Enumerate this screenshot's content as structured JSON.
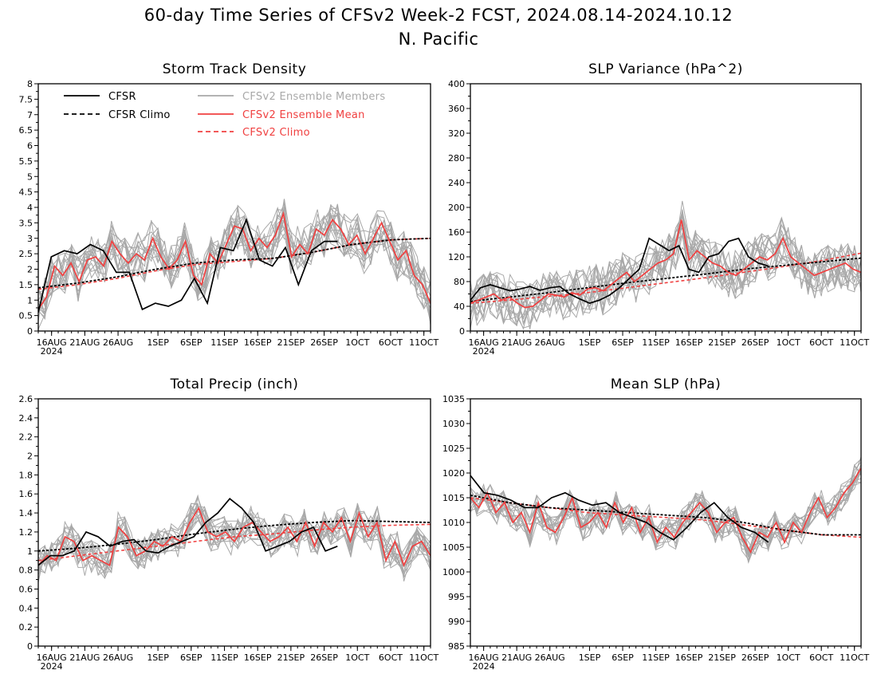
{
  "figure": {
    "title_line1": "60-day Time Series of CFSv2 Week-2 FCST, 2024.08.14-2024.10.12",
    "title_line2": "N. Pacific"
  },
  "legend": {
    "cfsr": "CFSR",
    "cfsr_climo": "CFSR Climo",
    "ens_members": "CFSv2 Ensemble Members",
    "ens_mean": "CFSv2 Ensemble Mean",
    "cfsv2_climo": "CFSv2 Climo"
  },
  "colors": {
    "cfsr": "#000000",
    "cfsr_climo": "#000000",
    "ens_members": "#a8a8a8",
    "ens_mean": "#f04040",
    "cfsv2_climo": "#f04040"
  },
  "x_axis": {
    "tick_labels": [
      "16AUG",
      "21AUG",
      "26AUG",
      "1SEP",
      "6SEP",
      "11SEP",
      "16SEP",
      "21SEP",
      "26SEP",
      "1OCT",
      "6OCT",
      "11OCT"
    ],
    "tick_days": [
      2,
      7,
      12,
      18,
      23,
      28,
      33,
      38,
      43,
      48,
      53,
      58
    ],
    "year_label": "2024",
    "start_date": "2024-08-14",
    "end_date": "2024-10-12",
    "n_days": 60
  },
  "chart_data": [
    {
      "type": "line",
      "title": "Storm Track Density",
      "ylim": [
        0,
        8
      ],
      "yticks": [
        "0",
        "0.5",
        "1",
        "1.5",
        "2",
        "2.5",
        "3",
        "3.5",
        "4",
        "4.5",
        "5",
        "5.5",
        "6",
        "6.5",
        "7",
        "7.5",
        "8"
      ],
      "show_legend": true,
      "series": [
        {
          "name": "CFSR",
          "x": [
            0,
            2,
            4,
            6,
            8,
            10,
            12,
            14,
            16,
            18,
            20,
            22,
            24,
            26,
            28,
            30,
            32,
            34,
            36,
            38,
            40,
            42,
            43,
            45,
            46,
            48,
            50,
            52,
            54,
            56,
            58,
            60
          ],
          "values": [
            0.6,
            2.4,
            2.6,
            2.5,
            2.8,
            2.6,
            1.9,
            1.9,
            0.7,
            0.9,
            0.8,
            1.0,
            1.7,
            0.9,
            2.7,
            2.6,
            3.6,
            2.3,
            2.1,
            2.7,
            1.5,
            2.6,
            2.9,
            2.9,
            null,
            null,
            null,
            null,
            null,
            null,
            null,
            null
          ]
        },
        {
          "name": "CFSR Climo",
          "values": [
            1.4,
            1.55,
            1.75,
            2.0,
            2.2,
            2.3,
            2.35,
            2.55,
            2.8,
            2.95,
            3.0
          ]
        },
        {
          "name": "CFSv2 Ensemble Mean",
          "values": [
            0.7,
            1.1,
            2.1,
            1.8,
            2.2,
            1.6,
            2.3,
            2.4,
            2.1,
            2.9,
            2.5,
            2.2,
            2.5,
            2.3,
            3.0,
            2.4,
            2.0,
            2.3,
            2.9,
            1.8,
            1.5,
            2.5,
            2.2,
            2.8,
            3.4,
            3.3,
            2.6,
            3.0,
            2.7,
            3.1,
            3.8,
            2.4,
            2.8,
            2.5,
            3.3,
            3.1,
            3.6,
            3.3,
            2.8,
            3.1,
            2.5,
            3.0,
            3.5,
            2.9,
            2.3,
            2.6,
            1.8,
            1.5,
            0.9
          ]
        },
        {
          "name": "CFSv2 Climo",
          "values": [
            1.35,
            1.5,
            1.7,
            1.95,
            2.15,
            2.25,
            2.35,
            2.55,
            2.8,
            2.95,
            3.0
          ]
        }
      ]
    },
    {
      "type": "line",
      "title": "SLP Variance (hPa^2)",
      "ylim": [
        0,
        400
      ],
      "yticks": [
        "0",
        "40",
        "80",
        "120",
        "160",
        "200",
        "240",
        "280",
        "320",
        "360",
        "400"
      ],
      "show_legend": false,
      "series": [
        {
          "name": "CFSR",
          "values": [
            50,
            70,
            75,
            70,
            65,
            68,
            72,
            66,
            70,
            72,
            60,
            52,
            45,
            50,
            58,
            70,
            85,
            100,
            150,
            140,
            130,
            138,
            100,
            95,
            120,
            125,
            145,
            150,
            120,
            110,
            105
          ]
        },
        {
          "name": "CFSR Climo",
          "values": [
            48,
            55,
            62,
            70,
            78,
            85,
            92,
            100,
            106,
            112,
            118
          ]
        },
        {
          "name": "CFSv2 Ensemble Mean",
          "values": [
            45,
            50,
            55,
            60,
            50,
            55,
            45,
            38,
            40,
            50,
            60,
            58,
            55,
            62,
            58,
            68,
            70,
            65,
            75,
            85,
            95,
            80,
            90,
            100,
            110,
            115,
            125,
            180,
            115,
            130,
            120,
            110,
            105,
            95,
            90,
            100,
            110,
            120,
            115,
            125,
            150,
            120,
            110,
            100,
            90,
            95,
            100,
            105,
            110,
            100,
            95
          ]
        },
        {
          "name": "CFSv2 Climo",
          "values": [
            45,
            50,
            56,
            62,
            70,
            78,
            86,
            95,
            104,
            114,
            126
          ]
        }
      ]
    },
    {
      "type": "line",
      "title": "Total Precip (inch)",
      "ylim": [
        0,
        2.6
      ],
      "yticks": [
        "0",
        "0.2",
        "0.4",
        "0.6",
        "0.8",
        "1",
        "1.2",
        "1.4",
        "1.6",
        "1.8",
        "2",
        "2.2",
        "2.4",
        "2.6"
      ],
      "show_legend": false,
      "series": [
        {
          "name": "CFSR",
          "values": [
            0.85,
            0.95,
            0.95,
            1.0,
            1.2,
            1.15,
            1.05,
            1.1,
            1.12,
            1.0,
            0.98,
            1.05,
            1.1,
            1.15,
            1.3,
            1.4,
            1.55,
            1.45,
            1.3,
            1.0,
            1.05,
            1.1,
            1.2,
            1.25,
            1.0,
            1.05
          ]
        },
        {
          "name": "CFSR Climo",
          "values": [
            1.0,
            1.03,
            1.07,
            1.12,
            1.18,
            1.23,
            1.27,
            1.3,
            1.32,
            1.31,
            1.3
          ]
        },
        {
          "name": "CFSv2 Ensemble Mean",
          "values": [
            0.85,
            0.95,
            0.9,
            1.15,
            1.1,
            0.9,
            0.95,
            0.9,
            0.85,
            1.25,
            1.15,
            0.95,
            1.0,
            1.1,
            1.05,
            1.15,
            1.1,
            1.3,
            1.45,
            1.2,
            1.15,
            1.2,
            1.1,
            1.25,
            1.3,
            1.2,
            1.1,
            1.15,
            1.25,
            1.1,
            1.3,
            1.05,
            1.3,
            1.2,
            1.35,
            1.1,
            1.4,
            1.15,
            1.3,
            0.9,
            1.1,
            0.85,
            1.05,
            1.1,
            0.95
          ]
        },
        {
          "name": "CFSv2 Climo",
          "values": [
            0.9,
            0.95,
            1.0,
            1.05,
            1.1,
            1.15,
            1.18,
            1.22,
            1.25,
            1.27,
            1.28
          ]
        }
      ]
    },
    {
      "type": "line",
      "title": "Mean SLP (hPa)",
      "ylim": [
        985,
        1035
      ],
      "yticks": [
        "985",
        "990",
        "995",
        "1000",
        "1005",
        "1010",
        "1015",
        "1020",
        "1025",
        "1030",
        "1035"
      ],
      "show_legend": false,
      "series": [
        {
          "name": "CFSR",
          "values": [
            1019.5,
            1016,
            1015.5,
            1014.5,
            1013,
            1013,
            1015,
            1016,
            1014.5,
            1013.5,
            1014,
            1012,
            1011,
            1010,
            1008,
            1006.5,
            1009,
            1012,
            1014,
            1011,
            1009,
            1008,
            1006
          ]
        },
        {
          "name": "CFSR Climo",
          "values": [
            1015.5,
            1014,
            1013,
            1012.5,
            1012,
            1011.5,
            1011,
            1010,
            1008.5,
            1007.5,
            1007.5
          ]
        },
        {
          "name": "CFSv2 Ensemble Mean",
          "values": [
            1015,
            1013,
            1016,
            1012,
            1014,
            1010,
            1012,
            1008,
            1014,
            1009,
            1008,
            1011,
            1015,
            1009,
            1010,
            1012,
            1009,
            1014,
            1010,
            1013,
            1008,
            1011,
            1006,
            1009,
            1007,
            1010,
            1012,
            1014,
            1012,
            1008,
            1010,
            1011,
            1007,
            1004,
            1008,
            1007,
            1010,
            1006,
            1010,
            1008,
            1012,
            1015,
            1011,
            1013,
            1016,
            1018,
            1021
          ]
        },
        {
          "name": "CFSv2 Climo",
          "values": [
            1015,
            1014,
            1013,
            1012,
            1011.5,
            1011,
            1010.5,
            1009.5,
            1008.5,
            1007.5,
            1007
          ]
        }
      ]
    }
  ]
}
